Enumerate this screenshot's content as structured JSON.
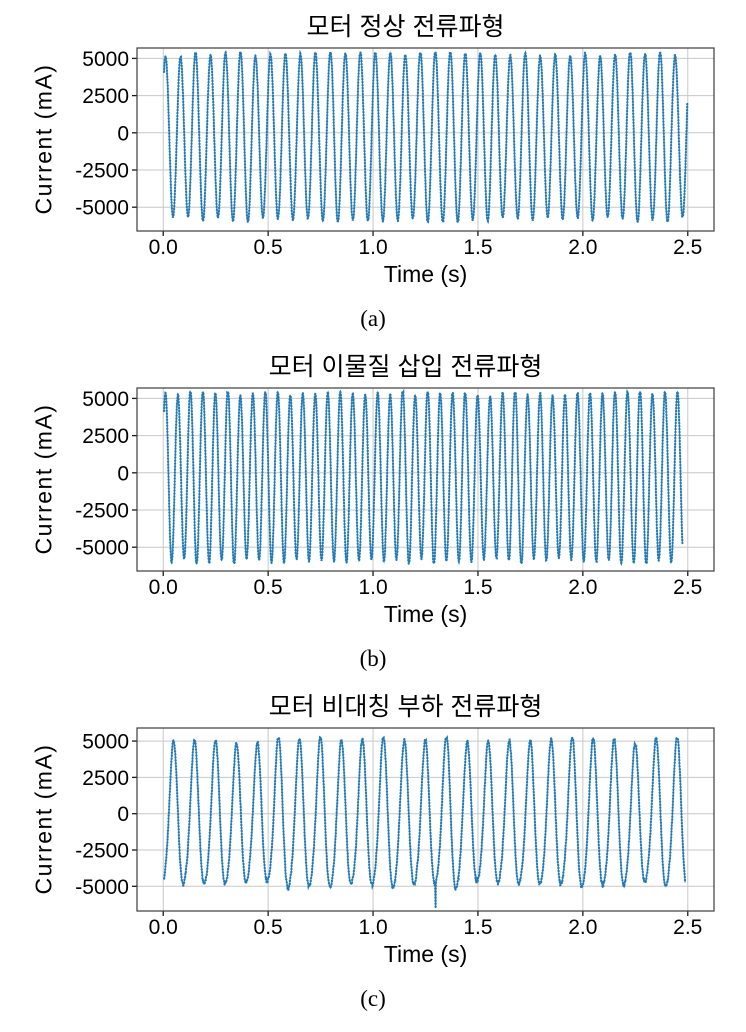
{
  "figure": {
    "background": "#ffffff"
  },
  "style": {
    "line_color": "#1f77b4",
    "grid_color": "#c8c8c8",
    "frame_color": "#3c3c3c",
    "tick_color": "#1a1a1a",
    "text_color": "#000000"
  },
  "chart_data": [
    {
      "type": "line",
      "id": "a",
      "title": "모터 정상 전류파형",
      "caption": "(a)",
      "xlabel": "Time (s)",
      "ylabel": "Current (mA)",
      "xtick_labels": [
        "0.0",
        "0.5",
        "1.0",
        "1.5",
        "2.0",
        "2.5"
      ],
      "xtick_values": [
        0,
        0.5,
        1.0,
        1.5,
        2.0,
        2.5
      ],
      "ytick_labels": [
        "5000",
        "2500",
        "0",
        "-2500",
        "-5000"
      ],
      "ytick_values": [
        5000,
        2500,
        0,
        -2500,
        -5000
      ],
      "xlim": [
        -0.125,
        2.625
      ],
      "ylim": [
        -6600,
        5700
      ],
      "grid": true,
      "legend": "none",
      "waveform": {
        "description": "dense ~14 Hz motor current sine, tops clipped near +5350 mA, troughs ~ -5850 mA",
        "freq_hz": 14,
        "phase_rad": 0.6,
        "offset_ma": -250,
        "amp_ma": 5600,
        "amp2_ma": 0,
        "ph2_rad": 0,
        "clip_top_ma": 5350,
        "clip_bottom_ma": -6000,
        "noise_ma": 70,
        "amp_jitter": 0.035,
        "t_start_s": 0.004,
        "t_end_s": 2.4985,
        "samples_per_cycle": 46,
        "seed": 7,
        "spikes": []
      }
    },
    {
      "type": "line",
      "id": "b",
      "title": "모터 이물질 삽입 전류파형",
      "caption": "(b)",
      "xlabel": "Time (s)",
      "ylabel": "Current (mA)",
      "xtick_labels": [
        "0.0",
        "0.5",
        "1.0",
        "1.5",
        "2.0",
        "2.5"
      ],
      "xtick_values": [
        0,
        0.5,
        1.0,
        1.5,
        2.0,
        2.5
      ],
      "ytick_labels": [
        "5000",
        "2500",
        "0",
        "-2500",
        "-5000"
      ],
      "ytick_values": [
        5000,
        2500,
        0,
        -2500,
        -5000
      ],
      "xlim": [
        -0.125,
        2.625
      ],
      "ylim": [
        -6600,
        5700
      ],
      "grid": true,
      "legend": "none",
      "waveform": {
        "description": "denser ~17 Hz motor current sine with foreign-object distortion, tops clipped near +5400 mA, troughs ~ -6000 mA",
        "freq_hz": 16.8,
        "phase_rad": 0.47,
        "offset_ma": -280,
        "amp_ma": 5680,
        "amp2_ma": 0,
        "ph2_rad": 0,
        "clip_top_ma": 5400,
        "clip_bottom_ma": -6100,
        "noise_ma": 75,
        "amp_jitter": 0.045,
        "t_start_s": 0.004,
        "t_end_s": 2.475,
        "samples_per_cycle": 46,
        "seed": 13,
        "spikes": []
      }
    },
    {
      "type": "line",
      "id": "c",
      "title": "모터 비대칭 부하 전류파형",
      "caption": "(c)",
      "xlabel": "Time (s)",
      "ylabel": "Current (mA)",
      "xtick_labels": [
        "0.0",
        "0.5",
        "1.0",
        "1.5",
        "2.0",
        "2.5"
      ],
      "xtick_values": [
        0,
        0.5,
        1.0,
        1.5,
        2.0,
        2.5
      ],
      "ytick_labels": [
        "5000",
        "2500",
        "0",
        "-2500",
        "-5000"
      ],
      "ytick_values": [
        5000,
        2500,
        0,
        -2500,
        -5000
      ],
      "xlim": [
        -0.125,
        2.625
      ],
      "ylim": [
        -6700,
        5900
      ],
      "grid": true,
      "legend": "none",
      "waveform": {
        "description": "~10 Hz asymmetric-load current: skewed sine with 2nd-harmonic shoulder, peaks ~ +5000 mA, troughs ~ -5000 mA, one spike to -6500 mA near t=1.3 s",
        "freq_hz": 10,
        "phase_rad": -1.45,
        "offset_ma": -450,
        "amp_ma": 5000,
        "amp2_ma": 650,
        "ph2_rad": -2.0,
        "clip_top_ma": 5200,
        "clip_bottom_ma": -5900,
        "noise_ma": 140,
        "amp_jitter": 0.07,
        "t_start_s": 0.004,
        "t_end_s": 2.49,
        "samples_per_cycle": 60,
        "seed": 21,
        "spikes": [
          {
            "t_s": 1.298,
            "value_ma": -6500
          }
        ]
      }
    }
  ]
}
